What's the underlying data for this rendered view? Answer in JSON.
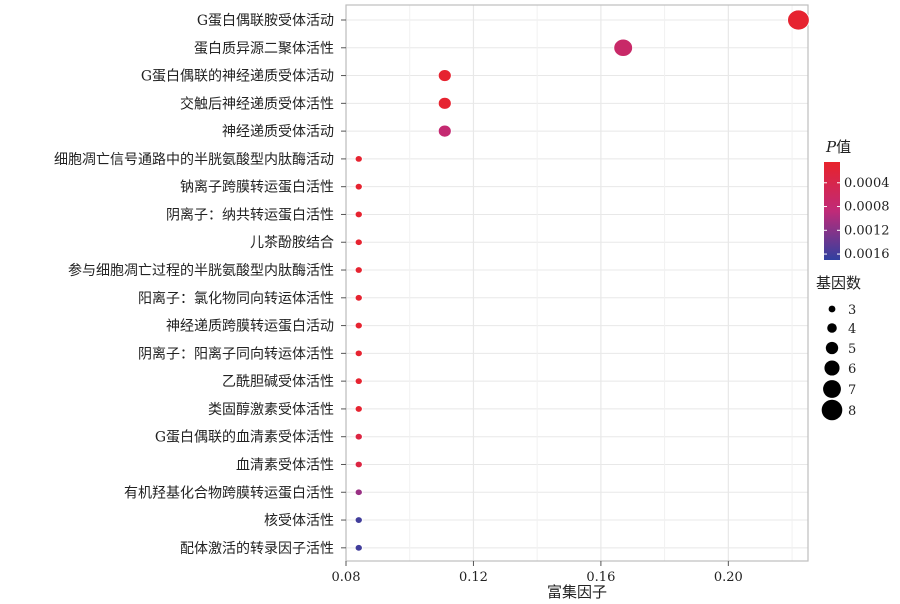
{
  "chart_data": {
    "type": "scatter",
    "xlabel": "富集因子",
    "ylabel": "",
    "xlim": [
      0.08,
      0.225
    ],
    "x_ticks": [
      "0.08",
      "0.12",
      "0.16",
      "0.20"
    ],
    "x_tick_values": [
      0.08,
      0.12,
      0.16,
      0.2
    ],
    "grid": true,
    "legend_position": "right",
    "categories": [
      "G蛋白偶联胺受体活动",
      "蛋白质异源二聚体活性",
      "G蛋白偶联的神经递质受体活动",
      "交触后神经递质受体活性",
      "神经递质受体活动",
      "细胞凋亡信号通路中的半胱氨酸型内肽酶活动",
      "钠离子跨膜转运蛋白活性",
      "阴离子：纳共转运蛋白活性",
      "儿茶酚胺结合",
      "参与细胞凋亡过程的半胱氨酸型内肽酶活性",
      "阳离子：氯化物同向转运体活性",
      "神经递质跨膜转运蛋白活动",
      "阴离子：阳离子同向转运体活性",
      "乙酰胆碱受体活性",
      "类固醇激素受体活性",
      "G蛋白偶联的血清素受体活性",
      "血清素受体活性",
      "有机羟基化合物跨膜转运蛋白活性",
      "核受体活性",
      "配体激活的转录因子活性"
    ],
    "points": [
      {
        "x": 0.222,
        "p": 0.0001,
        "count": 8
      },
      {
        "x": 0.167,
        "p": 0.0007,
        "count": 7
      },
      {
        "x": 0.111,
        "p": 0.0001,
        "count": 5
      },
      {
        "x": 0.111,
        "p": 0.0001,
        "count": 5
      },
      {
        "x": 0.111,
        "p": 0.0008,
        "count": 5
      },
      {
        "x": 0.084,
        "p": 0.0001,
        "count": 3
      },
      {
        "x": 0.084,
        "p": 0.0001,
        "count": 3
      },
      {
        "x": 0.084,
        "p": 0.0001,
        "count": 3
      },
      {
        "x": 0.084,
        "p": 0.0001,
        "count": 3
      },
      {
        "x": 0.084,
        "p": 0.0001,
        "count": 3
      },
      {
        "x": 0.084,
        "p": 0.0001,
        "count": 3
      },
      {
        "x": 0.084,
        "p": 0.0001,
        "count": 3
      },
      {
        "x": 0.084,
        "p": 0.0001,
        "count": 3
      },
      {
        "x": 0.084,
        "p": 0.0001,
        "count": 3
      },
      {
        "x": 0.084,
        "p": 0.0001,
        "count": 3
      },
      {
        "x": 0.084,
        "p": 0.0003,
        "count": 3
      },
      {
        "x": 0.084,
        "p": 0.0003,
        "count": 3
      },
      {
        "x": 0.084,
        "p": 0.0011,
        "count": 3
      },
      {
        "x": 0.084,
        "p": 0.0016,
        "count": 3
      },
      {
        "x": 0.084,
        "p": 0.0016,
        "count": 3
      }
    ],
    "color_legend": {
      "title_italic": "P",
      "title_suffix": "值",
      "labels": [
        "0.0004",
        "0.0008",
        "0.0012",
        "0.0016"
      ],
      "values": [
        0.0004,
        0.0008,
        0.0012,
        0.0016
      ],
      "range": [
        5e-05,
        0.0017
      ],
      "colors": [
        "#e8232b",
        "#c02a78",
        "#3040a0"
      ]
    },
    "size_legend": {
      "title": "基因数",
      "labels": [
        "3",
        "4",
        "5",
        "6",
        "7",
        "8"
      ],
      "values": [
        3,
        4,
        5,
        6,
        7,
        8
      ]
    },
    "colors": {
      "panel_border": "#bfbfbf",
      "grid": "#e8e8e8",
      "point_outline": "#ffffff"
    }
  }
}
